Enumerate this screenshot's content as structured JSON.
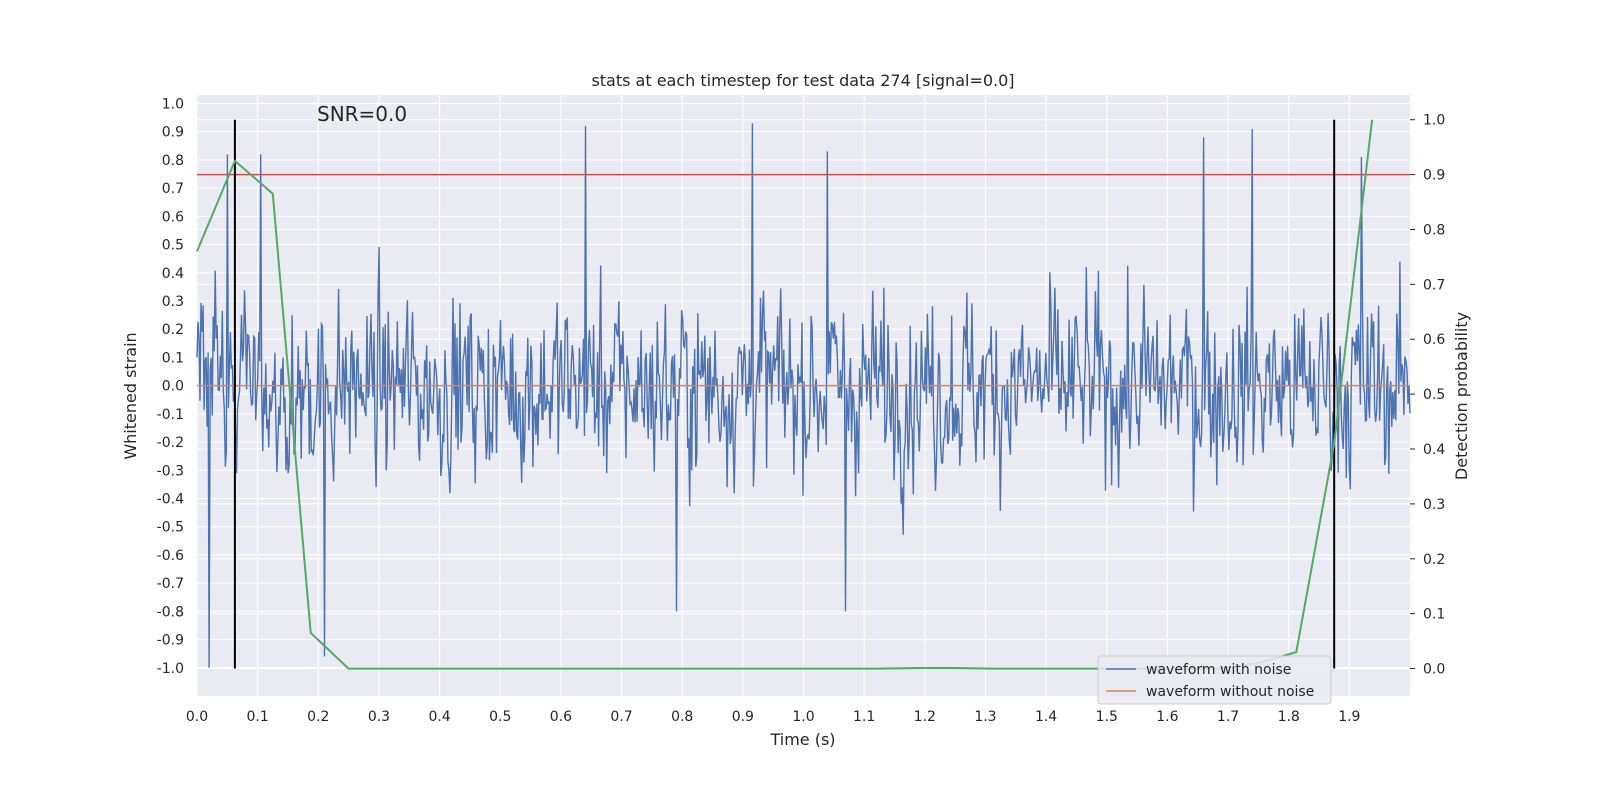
{
  "chart_data": {
    "type": "line",
    "title": "stats at each timestep for test data 274 [signal=0.0]",
    "annotation": "SNR=0.0",
    "xlabel": "Time (s)",
    "ylabel_left": "Whitened strain",
    "ylabel_right": "Detection probability",
    "xlim": [
      0.0,
      2.0
    ],
    "ylim_left": [
      -1.1,
      1.03
    ],
    "ylim_right": [
      -0.05,
      1.045
    ],
    "x_ticks": [
      "0.0",
      "0.1",
      "0.2",
      "0.3",
      "0.4",
      "0.5",
      "0.6",
      "0.7",
      "0.8",
      "0.9",
      "1.0",
      "1.1",
      "1.2",
      "1.3",
      "1.4",
      "1.5",
      "1.6",
      "1.7",
      "1.8",
      "1.9"
    ],
    "y_ticks_left": [
      "1.0",
      "0.9",
      "0.8",
      "0.7",
      "0.6",
      "0.5",
      "0.4",
      "0.3",
      "0.2",
      "0.1",
      "0.0",
      "-0.1",
      "-0.2",
      "-0.3",
      "-0.4",
      "-0.5",
      "-0.6",
      "-0.7",
      "-0.8",
      "-0.9",
      "-1.0"
    ],
    "y_ticks_right": [
      "1.0",
      "0.9",
      "0.8",
      "0.7",
      "0.6",
      "0.5",
      "0.4",
      "0.3",
      "0.2",
      "0.1",
      "0.0"
    ],
    "grid": true,
    "legend": {
      "position": "lower-right",
      "entries": [
        {
          "label": "waveform with noise",
          "color": "#4c72b0"
        },
        {
          "label": "waveform without noise",
          "color": "#dd8452"
        }
      ]
    },
    "series": [
      {
        "name": "waveform with noise",
        "axis": "left",
        "color": "#4c72b0",
        "x_range": [
          0.0,
          2.0
        ],
        "n_points": 1200,
        "amplitude_envelope": [
          -1.0,
          0.93
        ],
        "notable_peaks": [
          {
            "x": 0.05,
            "y": 0.82
          },
          {
            "x": 0.105,
            "y": 0.82
          },
          {
            "x": 0.02,
            "y": -1.0
          },
          {
            "x": 0.64,
            "y": 0.92
          },
          {
            "x": 0.915,
            "y": 0.93
          },
          {
            "x": 1.04,
            "y": 0.83
          },
          {
            "x": 0.21,
            "y": -0.96
          },
          {
            "x": 1.07,
            "y": -0.8
          },
          {
            "x": 0.79,
            "y": -0.8
          },
          {
            "x": 1.66,
            "y": 0.88
          },
          {
            "x": 1.74,
            "y": 0.91
          },
          {
            "x": 1.92,
            "y": 0.81
          }
        ]
      },
      {
        "name": "waveform without noise",
        "axis": "left",
        "color": "#dd8452",
        "x": [
          0.0,
          2.0
        ],
        "y": [
          0.0,
          0.0
        ]
      },
      {
        "axis": "right",
        "color": "#55a868",
        "x": [
          0.0,
          0.0625,
          0.125,
          0.1875,
          0.25,
          0.3125,
          0.375,
          0.4375,
          0.5,
          0.5625,
          0.625,
          0.6875,
          0.75,
          0.8125,
          0.875,
          0.9375,
          1.0,
          1.0625,
          1.125,
          1.1875,
          1.25,
          1.3125,
          1.375,
          1.4375,
          1.5,
          1.5625,
          1.625,
          1.6875,
          1.75,
          1.8125,
          1.875,
          1.9375
        ],
        "y": [
          0.76,
          0.925,
          0.865,
          0.065,
          0.0,
          0.0,
          0.0,
          0.0,
          0.0,
          0.0,
          0.0,
          0.0,
          0.0,
          0.0,
          0.0,
          0.0,
          0.0,
          0.0,
          0.0,
          0.001,
          0.001,
          0.0,
          0.0,
          0.0,
          0.0,
          0.0,
          0.0,
          0.0,
          0.01,
          0.03,
          0.41,
          1.0
        ]
      }
    ],
    "reference_lines": [
      {
        "orientation": "horizontal",
        "axis": "right",
        "y": 0.9,
        "color": "#c44e52"
      },
      {
        "orientation": "vertical",
        "x": 0.0625,
        "color": "#000000"
      },
      {
        "orientation": "vertical",
        "x": 1.875,
        "color": "#000000"
      }
    ]
  }
}
